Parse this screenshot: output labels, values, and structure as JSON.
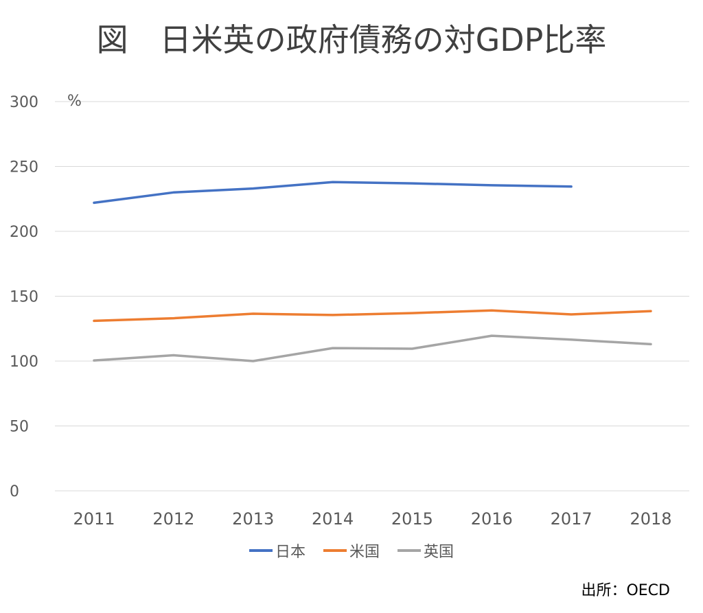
{
  "chart_data": {
    "type": "line",
    "title": "図　日米英の政府債務の対GDP比率",
    "ylabel": "%",
    "xlabel": "",
    "categories": [
      "2011",
      "2012",
      "2013",
      "2014",
      "2015",
      "2016",
      "2017",
      "2018"
    ],
    "yticks": [
      "0",
      "50",
      "100",
      "150",
      "200",
      "250",
      "300"
    ],
    "ylim": [
      0,
      300
    ],
    "grid": true,
    "legend_position": "bottom",
    "series": [
      {
        "name": "日本",
        "color": "#4472C4",
        "values": [
          222,
          230,
          233,
          238,
          237,
          235.5,
          234.5,
          null
        ]
      },
      {
        "name": "米国",
        "color": "#ED7D31",
        "values": [
          131,
          133,
          136.5,
          135.5,
          137,
          139,
          136,
          138.5
        ]
      },
      {
        "name": "英国",
        "color": "#A5A5A5",
        "values": [
          100.5,
          104.5,
          100,
          110,
          109.5,
          119.5,
          116.5,
          113
        ]
      }
    ]
  },
  "source": "出所：OECD"
}
